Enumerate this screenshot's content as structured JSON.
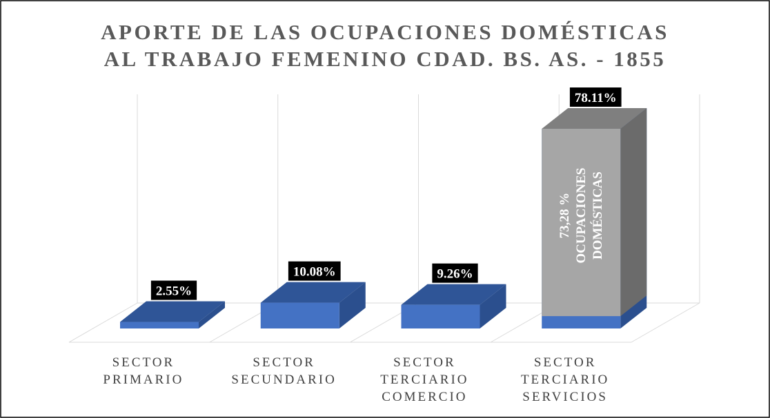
{
  "chart_data": {
    "type": "bar3d",
    "title": [
      "APORTE DE LAS OCUPACIONES DOMÉSTICAS",
      "AL TRABAJO FEMENINO  CDAD. BS. AS. - 1855"
    ],
    "categories": [
      [
        "SECTOR",
        "PRIMARIO"
      ],
      [
        "SECTOR",
        "SECUNDARIO"
      ],
      [
        "SECTOR",
        "TERCIARIO",
        "COMERCIO"
      ],
      [
        "SECTOR",
        "TERCIARIO",
        "SERVICIOS"
      ]
    ],
    "values": [
      2.55,
      10.08,
      9.26,
      78.11
    ],
    "value_labels": [
      "2.55%",
      "10.08%",
      "9.26%",
      "78.11%"
    ],
    "color": "#4472c4",
    "ylim": [
      0,
      80
    ],
    "annotation": {
      "category": 3,
      "value": 73.28,
      "color": "#a6a6a6",
      "text": [
        "73,28 %",
        "OCUPACIONES",
        "DOMÉSTICAS"
      ]
    }
  }
}
